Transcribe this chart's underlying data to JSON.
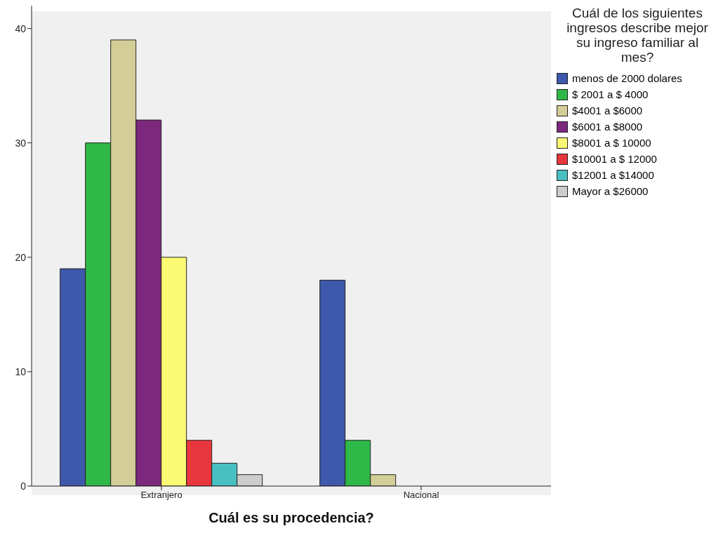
{
  "chart_data": {
    "type": "bar",
    "xlabel": "Cuál es su procedencia?",
    "legend_title": "Cuál de los siguientes ingresos describe mejor su ingreso familiar al mes?",
    "categories": [
      "Extranjero",
      "Nacional"
    ],
    "series": [
      {
        "name": "menos de 2000 dolares",
        "color": "#3e58ac",
        "values": [
          19,
          18
        ]
      },
      {
        "name": "$ 2001 a $ 4000",
        "color": "#2eb848",
        "values": [
          30,
          4
        ]
      },
      {
        "name": "$4001 a $6000",
        "color": "#d3ce97",
        "values": [
          39,
          1
        ]
      },
      {
        "name": "$6001 a $8000",
        "color": "#7b287d",
        "values": [
          32,
          null
        ]
      },
      {
        "name": "$8001 a $ 10000",
        "color": "#fbf873",
        "values": [
          20,
          null
        ]
      },
      {
        "name": "$10001 a $ 12000",
        "color": "#e8363d",
        "values": [
          4,
          null
        ]
      },
      {
        "name": "$12001 a $14000",
        "color": "#48c0c1",
        "values": [
          2,
          null
        ]
      },
      {
        "name": "Mayor a $26000",
        "color": "#cccccc",
        "values": [
          1,
          null
        ]
      }
    ],
    "ylim": [
      0,
      42
    ],
    "yticks": [
      0,
      10,
      20,
      30,
      40
    ],
    "grid": false,
    "legend": "right"
  }
}
